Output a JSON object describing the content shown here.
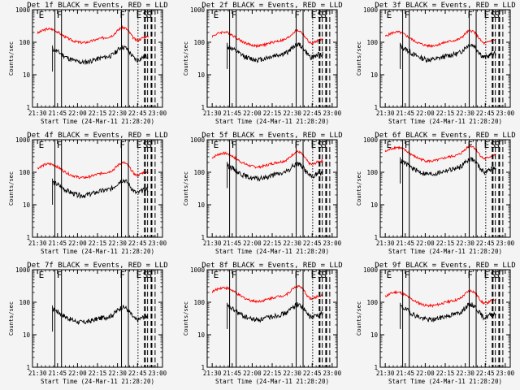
{
  "figure": {
    "background": "#f4f4f4",
    "colors": {
      "events": "#000000",
      "lld": "#ff0000",
      "frame": "#000000"
    }
  },
  "chart_data": [
    {
      "type": "line",
      "title": "Det 1f BLACK = Events, RED = LLD",
      "xlabel": "Start Time (24-Mar-11 21:28:20)",
      "ylabel": "Counts/sec",
      "xticks": [
        "21:30",
        "21:45",
        "22:00",
        "22:15",
        "22:30",
        "22:45",
        "23:00"
      ],
      "xlim": [
        -1.67,
        41.67
      ],
      "yscale": "log",
      "ylim": [
        1,
        1000
      ],
      "yticks": [
        "1",
        "10",
        "100",
        "1000"
      ],
      "red_base": 200,
      "black_base": 50,
      "black_start": 5,
      "red_start": 0,
      "flags": [
        {
          "t": 1.3,
          "label": "E"
        },
        {
          "t": 7.3,
          "label": "F"
        },
        {
          "t": 28.3,
          "label": "F"
        },
        {
          "t": 33.8,
          "label": "E"
        },
        {
          "t": 36.0,
          "label": "S"
        },
        {
          "t": 37.3,
          "label": "S"
        }
      ],
      "solid_lines": [
        5.8,
        8.0,
        28.0,
        30.3
      ],
      "dotted_lines": [
        33.5
      ],
      "dashed_lines": [
        35.8,
        36.7,
        38.0,
        39.2
      ]
    },
    {
      "type": "line",
      "title": "Det 2f BLACK = Events, RED = LLD",
      "xlabel": "Start Time (24-Mar-11 21:28:20)",
      "ylabel": "Counts/sec",
      "xticks": [
        "21:30",
        "21:45",
        "22:00",
        "22:15",
        "22:30",
        "22:45",
        "23:00"
      ],
      "xlim": [
        -1.67,
        41.67
      ],
      "yscale": "log",
      "ylim": [
        1,
        1000
      ],
      "yticks": [
        "1",
        "10",
        "100",
        "1000"
      ],
      "red_base": 160,
      "black_base": 60,
      "black_start": 5,
      "red_start": 0,
      "flags": [
        {
          "t": 1.3,
          "label": "E"
        },
        {
          "t": 7.3,
          "label": "F"
        },
        {
          "t": 28.3,
          "label": "F"
        },
        {
          "t": 33.8,
          "label": "E"
        },
        {
          "t": 36.0,
          "label": "S"
        },
        {
          "t": 37.3,
          "label": "S"
        }
      ],
      "solid_lines": [
        5.8,
        8.0,
        28.0,
        30.3
      ],
      "dotted_lines": [
        33.5
      ],
      "dashed_lines": [
        35.8,
        36.7,
        38.0,
        39.2
      ]
    },
    {
      "type": "line",
      "title": "Det 3f BLACK = Events, RED = LLD",
      "xlabel": "Start Time (24-Mar-11 21:28:20)",
      "ylabel": "Counts/sec",
      "xticks": [
        "21:30",
        "21:45",
        "22:00",
        "22:15",
        "22:30",
        "22:45",
        "23:00"
      ],
      "xlim": [
        -1.67,
        41.67
      ],
      "yscale": "log",
      "ylim": [
        1,
        1000
      ],
      "yticks": [
        "1",
        "10",
        "100",
        "1000"
      ],
      "red_base": 160,
      "black_base": 60,
      "black_start": 5,
      "red_start": 0,
      "flags": [
        {
          "t": 1.3,
          "label": "E"
        },
        {
          "t": 7.3,
          "label": "F"
        },
        {
          "t": 28.3,
          "label": "F"
        },
        {
          "t": 33.8,
          "label": "E"
        },
        {
          "t": 36.0,
          "label": "S"
        },
        {
          "t": 37.3,
          "label": "S"
        }
      ],
      "solid_lines": [
        5.8,
        8.0,
        28.0,
        30.3
      ],
      "dotted_lines": [
        33.5
      ],
      "dashed_lines": [
        35.8,
        36.7,
        38.0,
        39.2
      ]
    },
    {
      "type": "line",
      "title": "Det 4f BLACK = Events, RED = LLD",
      "xlabel": "Start Time (24-Mar-11 21:28:20)",
      "ylabel": "Counts/sec",
      "xticks": [
        "21:30",
        "21:45",
        "22:00",
        "22:15",
        "22:30",
        "22:45",
        "23:00"
      ],
      "xlim": [
        -1.67,
        41.67
      ],
      "yscale": "log",
      "ylim": [
        1,
        1000
      ],
      "yticks": [
        "1",
        "10",
        "100",
        "1000"
      ],
      "red_base": 140,
      "black_base": 40,
      "black_start": 5,
      "red_start": 0,
      "flags": [
        {
          "t": 1.3,
          "label": "E"
        },
        {
          "t": 7.3,
          "label": "F"
        },
        {
          "t": 28.3,
          "label": "F"
        },
        {
          "t": 33.8,
          "label": "E"
        },
        {
          "t": 36.0,
          "label": "S"
        },
        {
          "t": 37.3,
          "label": "S"
        }
      ],
      "solid_lines": [
        5.8,
        8.0,
        28.0,
        30.3
      ],
      "dotted_lines": [
        33.5
      ],
      "dashed_lines": [
        35.8,
        36.7,
        38.0,
        39.2
      ]
    },
    {
      "type": "line",
      "title": "Det 5f BLACK = Events, RED = LLD",
      "xlabel": "Start Time (24-Mar-11 21:28:20)",
      "ylabel": "Counts/sec",
      "xticks": [
        "21:30",
        "21:45",
        "22:00",
        "22:15",
        "22:30",
        "22:45",
        "23:00"
      ],
      "xlim": [
        -1.67,
        41.67
      ],
      "yscale": "log",
      "ylim": [
        1,
        1000
      ],
      "yticks": [
        "1",
        "10",
        "100",
        "1000"
      ],
      "red_base": 300,
      "black_base": 130,
      "black_start": 5,
      "red_start": 0,
      "flags": [
        {
          "t": 1.3,
          "label": "E"
        },
        {
          "t": 7.3,
          "label": "F"
        },
        {
          "t": 28.3,
          "label": "F"
        },
        {
          "t": 33.8,
          "label": "E"
        },
        {
          "t": 36.0,
          "label": "S"
        },
        {
          "t": 37.3,
          "label": "S"
        }
      ],
      "solid_lines": [
        5.8,
        8.0,
        28.0,
        30.3
      ],
      "dotted_lines": [
        33.5
      ],
      "dashed_lines": [
        35.8,
        36.7,
        38.0,
        39.2
      ]
    },
    {
      "type": "line",
      "title": "Det 6f BLACK = Events, RED = LLD",
      "xlabel": "Start Time (24-Mar-11 21:28:20)",
      "ylabel": "Counts/sec",
      "xticks": [
        "21:30",
        "21:45",
        "22:00",
        "22:15",
        "22:30",
        "22:45",
        "23:00"
      ],
      "xlim": [
        -1.67,
        41.67
      ],
      "yscale": "log",
      "ylim": [
        1,
        1000
      ],
      "yticks": [
        "1",
        "10",
        "100",
        "1000"
      ],
      "red_base": 450,
      "black_base": 180,
      "black_start": 5,
      "red_start": 0,
      "flags": [
        {
          "t": 1.3,
          "label": "E"
        },
        {
          "t": 7.3,
          "label": "F"
        },
        {
          "t": 28.3,
          "label": "F"
        },
        {
          "t": 33.8,
          "label": "E"
        },
        {
          "t": 36.0,
          "label": "S"
        },
        {
          "t": 37.3,
          "label": "S"
        }
      ],
      "solid_lines": [
        5.8,
        8.0,
        28.0,
        30.3
      ],
      "dotted_lines": [
        33.5
      ],
      "dashed_lines": [
        35.8,
        36.7,
        38.0,
        39.2
      ]
    },
    {
      "type": "line",
      "title": "Det 7f BLACK = Events, RED = LLD",
      "xlabel": "Start Time (24-Mar-11 21:28:20)",
      "ylabel": "Counts/sec",
      "xticks": [
        "21:30",
        "21:45",
        "22:00",
        "22:15",
        "22:30",
        "22:45",
        "23:00"
      ],
      "xlim": [
        -1.67,
        41.67
      ],
      "yscale": "log",
      "ylim": [
        1,
        1000
      ],
      "yticks": [
        "1",
        "10",
        "100",
        "1000"
      ],
      "red_base": null,
      "black_base": 50,
      "black_start": 5,
      "red_start": 0,
      "flags": [
        {
          "t": 1.3,
          "label": "E"
        },
        {
          "t": 7.3,
          "label": "F"
        },
        {
          "t": 28.3,
          "label": "F"
        },
        {
          "t": 33.8,
          "label": "E"
        },
        {
          "t": 36.0,
          "label": "S"
        },
        {
          "t": 37.3,
          "label": "S"
        }
      ],
      "solid_lines": [
        5.8,
        8.0,
        28.0,
        30.3
      ],
      "dotted_lines": [
        33.5
      ],
      "dashed_lines": [
        35.8,
        36.7,
        38.0,
        39.2
      ]
    },
    {
      "type": "line",
      "title": "Det 8f BLACK = Events, RED = LLD",
      "xlabel": "Start Time (24-Mar-11 21:28:20)",
      "ylabel": "Counts/sec",
      "xticks": [
        "21:30",
        "21:45",
        "22:00",
        "22:15",
        "22:30",
        "22:45",
        "23:00"
      ],
      "xlim": [
        -1.67,
        41.67
      ],
      "yscale": "log",
      "ylim": [
        1,
        1000
      ],
      "yticks": [
        "1",
        "10",
        "100",
        "1000"
      ],
      "red_base": 220,
      "black_base": 60,
      "black_start": 5,
      "red_start": 0,
      "flags": [
        {
          "t": 1.3,
          "label": "E"
        },
        {
          "t": 7.3,
          "label": "F"
        },
        {
          "t": 28.3,
          "label": "F"
        },
        {
          "t": 33.8,
          "label": "E"
        },
        {
          "t": 36.0,
          "label": "S"
        },
        {
          "t": 37.3,
          "label": "S"
        }
      ],
      "solid_lines": [
        5.8,
        8.0,
        28.0,
        30.3
      ],
      "dotted_lines": [
        33.5
      ],
      "dashed_lines": [
        35.8,
        36.7,
        38.0,
        39.2
      ]
    },
    {
      "type": "line",
      "title": "Det 9f BLACK = Events, RED = LLD",
      "xlabel": "Start Time (24-Mar-11 21:28:20)",
      "ylabel": "Counts/sec",
      "xticks": [
        "21:30",
        "21:45",
        "22:00",
        "22:15",
        "22:30",
        "22:45",
        "23:00"
      ],
      "xlim": [
        -1.67,
        41.67
      ],
      "yscale": "log",
      "ylim": [
        1,
        1000
      ],
      "yticks": [
        "1",
        "10",
        "100",
        "1000"
      ],
      "red_base": 160,
      "black_base": 60,
      "black_start": 5,
      "red_start": 0,
      "flags": [
        {
          "t": 1.3,
          "label": "E"
        },
        {
          "t": 7.3,
          "label": "F"
        },
        {
          "t": 28.3,
          "label": "F"
        },
        {
          "t": 33.8,
          "label": "E"
        },
        {
          "t": 36.0,
          "label": "S"
        },
        {
          "t": 37.3,
          "label": "S"
        }
      ],
      "solid_lines": [
        5.8,
        8.0,
        28.0,
        30.3
      ],
      "dotted_lines": [
        33.5
      ],
      "dashed_lines": [
        35.8,
        36.7,
        38.0,
        39.2
      ]
    }
  ]
}
